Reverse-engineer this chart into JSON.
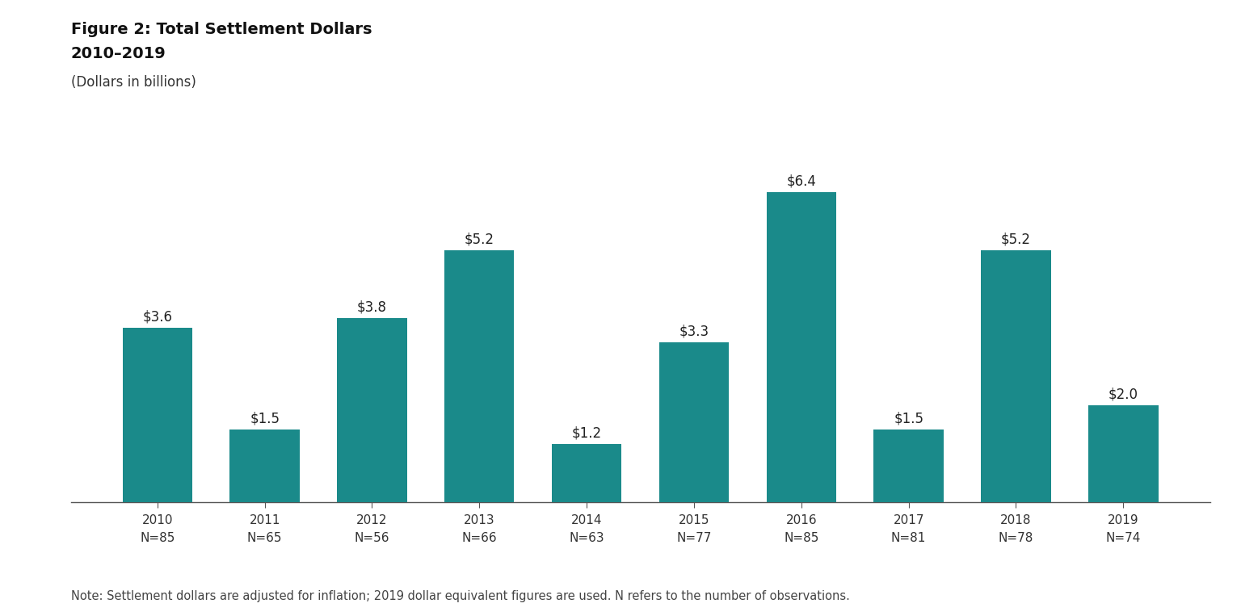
{
  "title_line1": "Figure 2: Total Settlement Dollars",
  "title_line2": "2010–2019",
  "subtitle": "(Dollars in billions)",
  "note": "Note: Settlement dollars are adjusted for inflation; 2019 dollar equivalent figures are used. N refers to the number of observations.",
  "years": [
    2010,
    2011,
    2012,
    2013,
    2014,
    2015,
    2016,
    2017,
    2018,
    2019
  ],
  "n_values": [
    85,
    65,
    56,
    66,
    63,
    77,
    85,
    81,
    78,
    74
  ],
  "values": [
    3.6,
    1.5,
    3.8,
    5.2,
    1.2,
    3.3,
    6.4,
    1.5,
    5.2,
    2.0
  ],
  "bar_color": "#1a8a8a",
  "background_color": "#ffffff",
  "bar_labels": [
    "$3.6",
    "$1.5",
    "$3.8",
    "$5.2",
    "$1.2",
    "$3.3",
    "$6.4",
    "$1.5",
    "$5.2",
    "$2.0"
  ],
  "title_fontsize": 14,
  "subtitle_fontsize": 12,
  "label_fontsize": 12,
  "tick_fontsize": 11,
  "note_fontsize": 10.5,
  "ylim": [
    0,
    7.5
  ]
}
